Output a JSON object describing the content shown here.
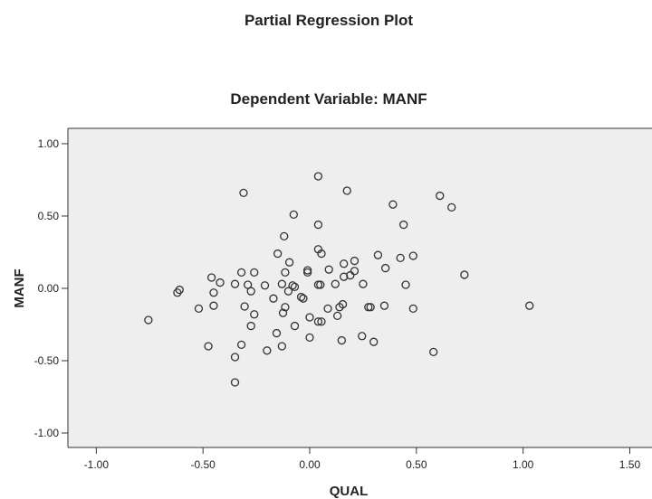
{
  "chart_data": {
    "type": "scatter",
    "title": "Partial Regression Plot",
    "subtitle": "Dependent Variable: MANF",
    "x_label": "QUAL",
    "y_label": "MANF",
    "color": "#333333",
    "x": [
      -0.756,
      -0.62,
      -0.61,
      -0.52,
      -0.475,
      -0.46,
      -0.45,
      -0.45,
      -0.42,
      -0.35,
      -0.35,
      -0.35,
      -0.32,
      -0.32,
      -0.31,
      -0.305,
      -0.29,
      -0.275,
      -0.275,
      -0.26,
      -0.26,
      -0.21,
      -0.2,
      -0.17,
      -0.155,
      -0.15,
      -0.13,
      -0.13,
      -0.125,
      -0.12,
      -0.115,
      -0.115,
      -0.1,
      -0.095,
      -0.08,
      -0.075,
      -0.07,
      -0.07,
      -0.04,
      -0.03,
      -0.01,
      -0.01,
      0.0,
      0.0,
      0.04,
      0.04,
      0.04,
      0.04,
      0.04,
      0.05,
      0.055,
      0.055,
      0.085,
      0.09,
      0.12,
      0.13,
      0.14,
      0.15,
      0.155,
      0.16,
      0.16,
      0.175,
      0.19,
      0.21,
      0.21,
      0.245,
      0.25,
      0.275,
      0.285,
      0.3,
      0.32,
      0.35,
      0.355,
      0.39,
      0.425,
      0.44,
      0.45,
      0.485,
      0.485,
      0.58,
      0.61,
      0.665,
      0.725,
      1.03
    ],
    "values": [
      -0.219,
      -0.03,
      -0.01,
      -0.14,
      -0.4,
      0.075,
      -0.03,
      -0.12,
      0.04,
      -0.65,
      -0.475,
      0.03,
      -0.39,
      0.11,
      0.66,
      -0.125,
      0.025,
      -0.26,
      -0.02,
      -0.18,
      0.11,
      0.02,
      -0.43,
      -0.07,
      -0.31,
      0.24,
      0.03,
      -0.4,
      -0.17,
      0.36,
      -0.13,
      0.11,
      -0.02,
      0.18,
      0.02,
      0.51,
      0.01,
      -0.26,
      -0.06,
      -0.07,
      0.125,
      0.11,
      -0.34,
      -0.2,
      0.44,
      0.27,
      0.775,
      -0.23,
      0.025,
      0.025,
      0.24,
      -0.23,
      -0.14,
      0.13,
      0.03,
      -0.19,
      -0.13,
      -0.36,
      -0.11,
      0.08,
      0.17,
      0.675,
      0.09,
      0.12,
      0.19,
      -0.33,
      0.03,
      -0.13,
      -0.13,
      -0.37,
      0.23,
      -0.12,
      0.14,
      0.58,
      0.21,
      0.44,
      0.025,
      0.225,
      -0.14,
      -0.44,
      0.64,
      0.56,
      0.094,
      -0.12
    ],
    "xlim": [
      -1.133,
      1.604
    ],
    "ylim": [
      -1.1,
      1.106
    ],
    "xticks": [
      {
        "value": -1,
        "label": "-1.00"
      },
      {
        "value": -0.5,
        "label": "-0.50"
      },
      {
        "value": 0,
        "label": "0.00"
      },
      {
        "value": 0.5,
        "label": "0.50"
      },
      {
        "value": 1,
        "label": "1.00"
      },
      {
        "value": 1.5,
        "label": "1.50"
      }
    ],
    "yticks": [
      {
        "value": -1,
        "label": "-1.00"
      },
      {
        "value": -0.5,
        "label": "-0.50"
      },
      {
        "value": 0,
        "label": "0.00"
      },
      {
        "value": 0.5,
        "label": "0.50"
      },
      {
        "value": 1,
        "label": "1.00"
      }
    ]
  }
}
